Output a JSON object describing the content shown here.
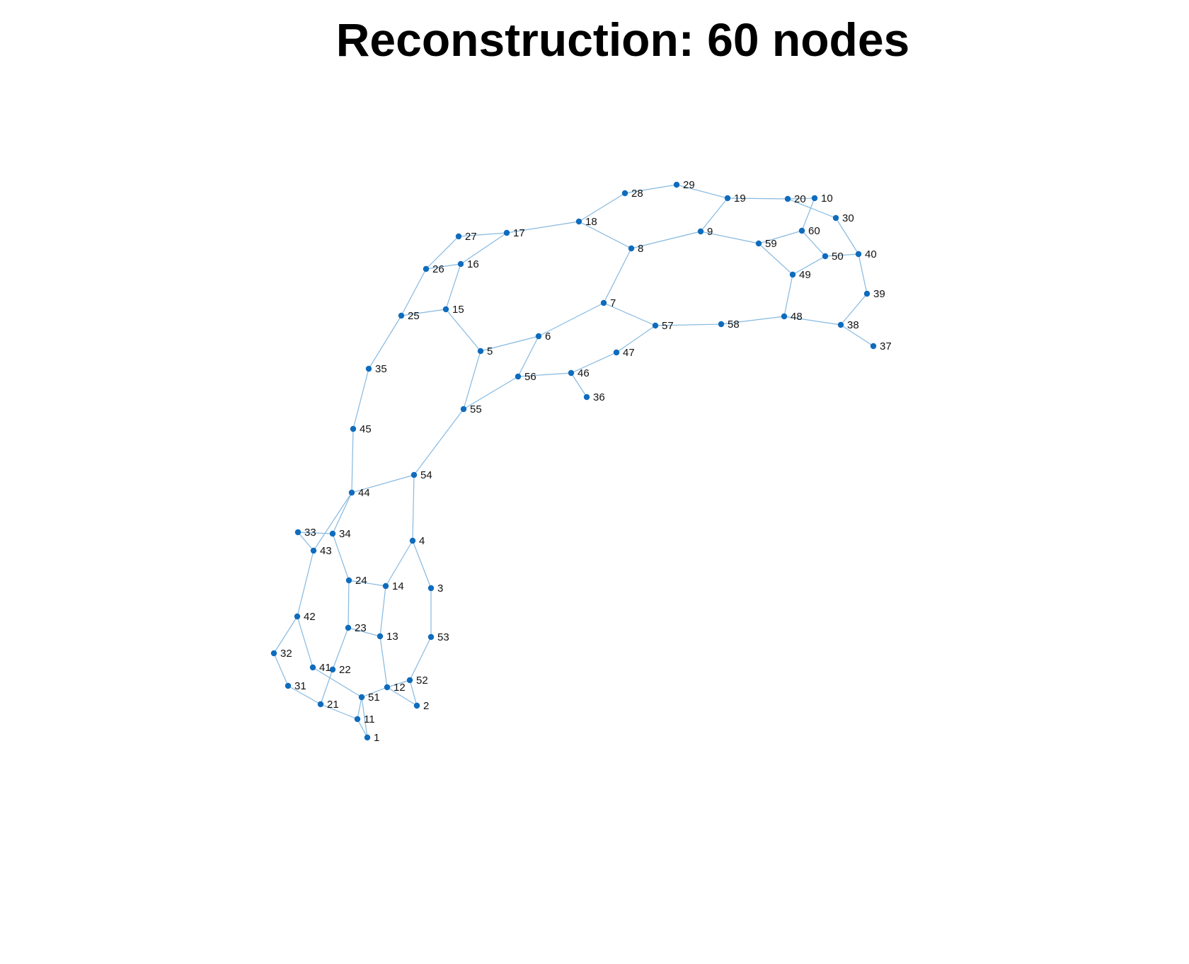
{
  "title": "Reconstruction: 60 nodes",
  "colors": {
    "node": "#0f6cbd",
    "edge": "#86b9e0"
  },
  "nodes": [
    {
      "id": "1"
    },
    {
      "id": "2"
    },
    {
      "id": "3"
    },
    {
      "id": "4"
    },
    {
      "id": "5"
    },
    {
      "id": "6"
    },
    {
      "id": "7"
    },
    {
      "id": "8"
    },
    {
      "id": "9"
    },
    {
      "id": "10"
    },
    {
      "id": "11"
    },
    {
      "id": "12"
    },
    {
      "id": "13"
    },
    {
      "id": "14"
    },
    {
      "id": "15"
    },
    {
      "id": "16"
    },
    {
      "id": "17"
    },
    {
      "id": "18"
    },
    {
      "id": "19"
    },
    {
      "id": "20"
    },
    {
      "id": "21"
    },
    {
      "id": "22"
    },
    {
      "id": "23"
    },
    {
      "id": "24"
    },
    {
      "id": "25"
    },
    {
      "id": "26"
    },
    {
      "id": "27"
    },
    {
      "id": "28"
    },
    {
      "id": "29"
    },
    {
      "id": "30"
    },
    {
      "id": "31"
    },
    {
      "id": "32"
    },
    {
      "id": "33"
    },
    {
      "id": "34"
    },
    {
      "id": "35"
    },
    {
      "id": "36"
    },
    {
      "id": "37"
    },
    {
      "id": "38"
    },
    {
      "id": "39"
    },
    {
      "id": "40"
    },
    {
      "id": "41"
    },
    {
      "id": "42"
    },
    {
      "id": "43"
    },
    {
      "id": "44"
    },
    {
      "id": "45"
    },
    {
      "id": "46"
    },
    {
      "id": "47"
    },
    {
      "id": "48"
    },
    {
      "id": "49"
    },
    {
      "id": "50"
    },
    {
      "id": "51"
    },
    {
      "id": "52"
    },
    {
      "id": "53"
    },
    {
      "id": "54"
    },
    {
      "id": "55"
    },
    {
      "id": "56"
    },
    {
      "id": "57"
    },
    {
      "id": "58"
    },
    {
      "id": "59"
    },
    {
      "id": "60"
    }
  ],
  "edges": [
    [
      "28",
      "29"
    ],
    [
      "29",
      "19"
    ],
    [
      "19",
      "20"
    ],
    [
      "20",
      "10"
    ],
    [
      "20",
      "30"
    ],
    [
      "10",
      "60"
    ],
    [
      "19",
      "9"
    ],
    [
      "18",
      "28"
    ],
    [
      "17",
      "18"
    ],
    [
      "27",
      "17"
    ],
    [
      "16",
      "17"
    ],
    [
      "27",
      "26"
    ],
    [
      "26",
      "16"
    ],
    [
      "26",
      "25"
    ],
    [
      "16",
      "15"
    ],
    [
      "15",
      "25"
    ],
    [
      "25",
      "35"
    ],
    [
      "35",
      "45"
    ],
    [
      "45",
      "44"
    ],
    [
      "15",
      "5"
    ],
    [
      "5",
      "6"
    ],
    [
      "6",
      "7"
    ],
    [
      "7",
      "8"
    ],
    [
      "8",
      "18"
    ],
    [
      "8",
      "9"
    ],
    [
      "9",
      "59"
    ],
    [
      "59",
      "60"
    ],
    [
      "59",
      "49"
    ],
    [
      "60",
      "50"
    ],
    [
      "50",
      "40"
    ],
    [
      "50",
      "49"
    ],
    [
      "30",
      "40"
    ],
    [
      "40",
      "39"
    ],
    [
      "39",
      "38"
    ],
    [
      "38",
      "37"
    ],
    [
      "38",
      "48"
    ],
    [
      "49",
      "48"
    ],
    [
      "48",
      "58"
    ],
    [
      "58",
      "57"
    ],
    [
      "57",
      "7"
    ],
    [
      "57",
      "47"
    ],
    [
      "47",
      "46"
    ],
    [
      "46",
      "36"
    ],
    [
      "46",
      "56"
    ],
    [
      "6",
      "56"
    ],
    [
      "56",
      "55"
    ],
    [
      "5",
      "55"
    ],
    [
      "55",
      "54"
    ],
    [
      "54",
      "44"
    ],
    [
      "54",
      "4"
    ],
    [
      "44",
      "43"
    ],
    [
      "44",
      "34"
    ],
    [
      "33",
      "34"
    ],
    [
      "33",
      "43"
    ],
    [
      "43",
      "42"
    ],
    [
      "42",
      "32"
    ],
    [
      "32",
      "31"
    ],
    [
      "31",
      "21"
    ],
    [
      "42",
      "41"
    ],
    [
      "41",
      "51"
    ],
    [
      "34",
      "24"
    ],
    [
      "24",
      "14"
    ],
    [
      "24",
      "23"
    ],
    [
      "23",
      "13"
    ],
    [
      "23",
      "22"
    ],
    [
      "22",
      "21"
    ],
    [
      "21",
      "11"
    ],
    [
      "11",
      "51"
    ],
    [
      "11",
      "1"
    ],
    [
      "51",
      "1"
    ],
    [
      "51",
      "12"
    ],
    [
      "14",
      "13"
    ],
    [
      "13",
      "12"
    ],
    [
      "4",
      "14"
    ],
    [
      "4",
      "3"
    ],
    [
      "3",
      "53"
    ],
    [
      "53",
      "52"
    ],
    [
      "52",
      "12"
    ],
    [
      "52",
      "2"
    ],
    [
      "12",
      "2"
    ]
  ]
}
